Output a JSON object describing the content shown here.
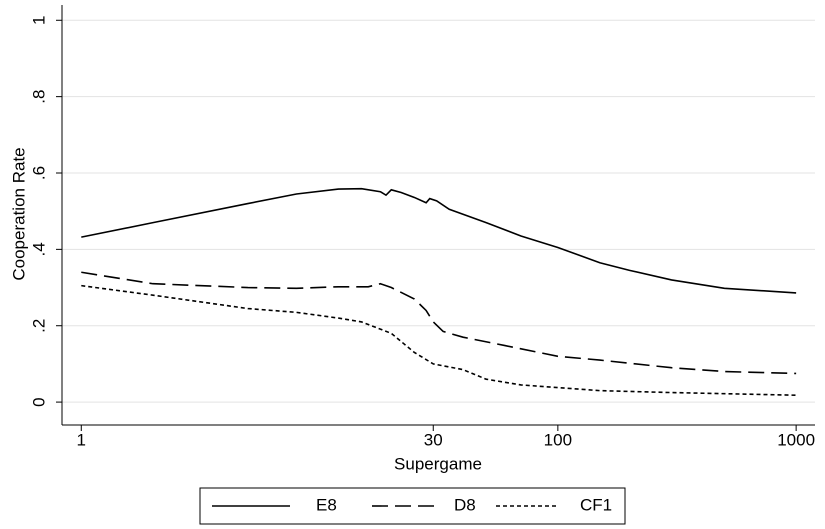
{
  "chart_data": {
    "type": "line",
    "x_label": "Supergame",
    "y_label": "Cooperation Rate",
    "x_log": true,
    "grid": true,
    "legend_position": "bottom",
    "xlim": [
      0.83,
      1200
    ],
    "xticks": [
      1,
      30,
      100,
      1000
    ],
    "ylim": [
      -0.06,
      1.04
    ],
    "yticks": [
      0,
      {
        "value": 0.2,
        "label": ".2"
      },
      {
        "value": 0.4,
        "label": ".4"
      },
      {
        "value": 0.6,
        "label": ".6"
      },
      {
        "value": 0.8,
        "label": ".8"
      },
      1
    ],
    "series": [
      {
        "name": "E8",
        "color": "#000000",
        "line_style": "solid",
        "x": [
          1,
          2,
          5,
          8,
          12,
          15,
          18,
          19,
          20,
          22,
          25,
          28,
          29,
          31,
          35,
          50,
          70,
          100,
          150,
          200,
          300,
          500,
          1000
        ],
        "values": [
          0.432,
          0.47,
          0.52,
          0.545,
          0.558,
          0.559,
          0.551,
          0.542,
          0.556,
          0.549,
          0.536,
          0.522,
          0.533,
          0.527,
          0.505,
          0.47,
          0.435,
          0.405,
          0.365,
          0.345,
          0.32,
          0.298,
          0.286
        ]
      },
      {
        "name": "D8",
        "color": "#000000",
        "line_style": "longdash",
        "x": [
          1,
          2,
          5,
          8,
          12,
          16,
          18,
          20,
          25,
          28,
          30,
          33,
          40,
          60,
          100,
          150,
          300,
          500,
          1000
        ],
        "values": [
          0.34,
          0.31,
          0.3,
          0.298,
          0.302,
          0.302,
          0.31,
          0.3,
          0.27,
          0.24,
          0.21,
          0.185,
          0.17,
          0.148,
          0.12,
          0.11,
          0.09,
          0.08,
          0.075
        ]
      },
      {
        "name": "CF1",
        "color": "#000000",
        "line_style": "shortdash",
        "x": [
          1,
          2,
          5,
          8,
          12,
          15,
          20,
          25,
          30,
          40,
          50,
          70,
          100,
          150,
          300,
          1000
        ],
        "values": [
          0.305,
          0.28,
          0.245,
          0.235,
          0.22,
          0.21,
          0.18,
          0.13,
          0.1,
          0.085,
          0.06,
          0.045,
          0.038,
          0.03,
          0.025,
          0.018
        ]
      }
    ]
  }
}
